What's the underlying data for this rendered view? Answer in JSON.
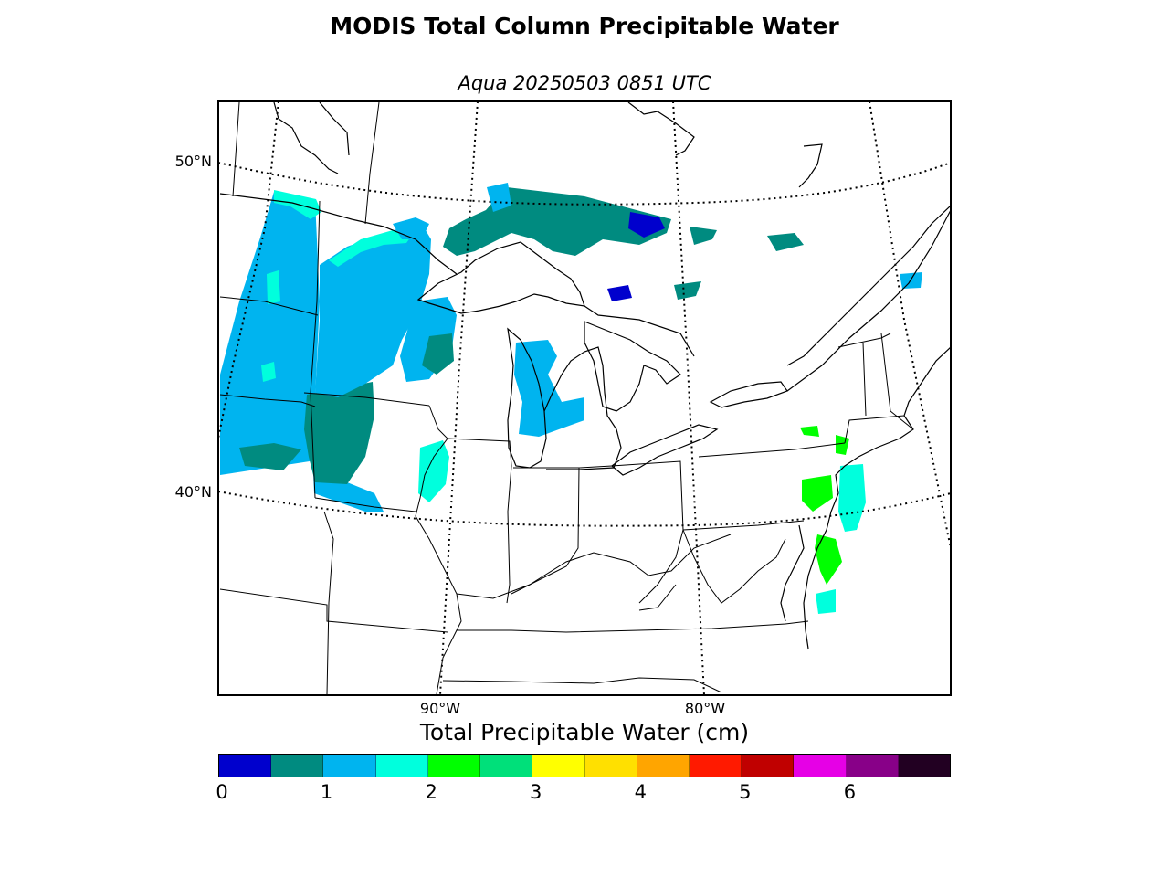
{
  "title": "MODIS Total Column Precipitable Water",
  "subtitle": "Aqua 20250503 0851 UTC",
  "map": {
    "parallels": [
      {
        "label": "50°N"
      },
      {
        "label": "40°N"
      }
    ],
    "meridians": [
      {
        "label": "90°W"
      },
      {
        "label": "80°W"
      }
    ],
    "gridline_style": "dotted",
    "features": [
      "coastlines",
      "state-borders",
      "country-borders",
      "great-lakes"
    ]
  },
  "colorbar": {
    "title": "Total Precipitable Water (cm)",
    "colors": [
      "#0000cd",
      "#008b80",
      "#00b4ef",
      "#00ffdd",
      "#00ff00",
      "#00e07a",
      "#ffff00",
      "#ffe000",
      "#ffa500",
      "#ff1a00",
      "#c00000",
      "#e600e6",
      "#880088",
      "#220022"
    ],
    "ticks": [
      "0",
      "1",
      "2",
      "3",
      "4",
      "5",
      "6"
    ]
  }
}
